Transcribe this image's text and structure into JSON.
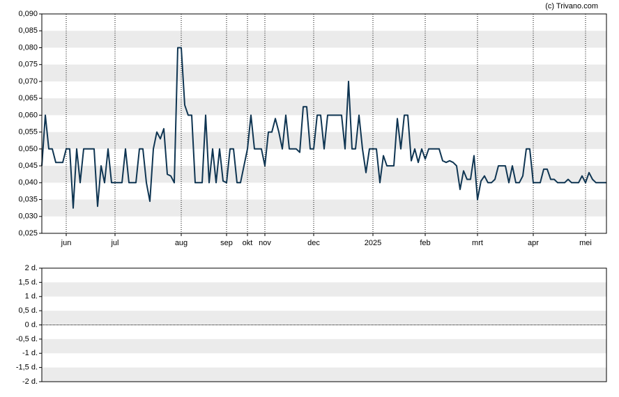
{
  "credit": "(c) Trivano.com",
  "chart_data": [
    {
      "type": "line",
      "categories": [
        null,
        null,
        null,
        null,
        null,
        null,
        null,
        "jun",
        null,
        null,
        null,
        null,
        null,
        null,
        null,
        null,
        null,
        null,
        null,
        null,
        null,
        "jul",
        null,
        null,
        null,
        null,
        null,
        null,
        null,
        null,
        null,
        null,
        null,
        null,
        null,
        null,
        null,
        null,
        null,
        null,
        "aug",
        null,
        null,
        null,
        null,
        null,
        null,
        null,
        null,
        null,
        null,
        null,
        null,
        "sep",
        null,
        null,
        null,
        null,
        null,
        "okt",
        null,
        null,
        null,
        null,
        "nov",
        null,
        null,
        null,
        null,
        null,
        null,
        null,
        null,
        null,
        null,
        null,
        null,
        null,
        "dec",
        null,
        null,
        null,
        null,
        null,
        null,
        null,
        null,
        null,
        null,
        null,
        null,
        null,
        null,
        null,
        null,
        "2025",
        null,
        null,
        null,
        null,
        null,
        null,
        null,
        null,
        null,
        null,
        null,
        null,
        null,
        null,
        "feb",
        null,
        null,
        null,
        null,
        null,
        null,
        null,
        null,
        null,
        null,
        null,
        null,
        null,
        null,
        "mrt",
        null,
        null,
        null,
        null,
        null,
        null,
        null,
        null,
        null,
        null,
        null,
        null,
        null,
        null,
        null,
        "apr",
        null,
        null,
        null,
        null,
        null,
        null,
        null,
        null,
        null,
        null,
        null,
        null,
        null,
        null,
        "mei",
        null,
        null,
        null,
        null,
        null,
        null
      ],
      "series": [
        {
          "color": "#0f3552",
          "values": [
            0.045,
            0.06,
            0.05,
            0.05,
            0.046,
            0.046,
            0.046,
            0.05,
            0.05,
            0.0325,
            0.05,
            0.04,
            0.05,
            0.05,
            0.05,
            0.05,
            0.033,
            0.045,
            0.04,
            0.05,
            0.04,
            0.04,
            0.04,
            0.04,
            0.05,
            0.04,
            0.04,
            0.04,
            0.05,
            0.05,
            0.04,
            0.0345,
            0.05,
            0.055,
            0.053,
            0.056,
            0.0425,
            0.042,
            0.04,
            0.08,
            0.08,
            0.063,
            0.06,
            0.06,
            0.04,
            0.04,
            0.04,
            0.06,
            0.04,
            0.05,
            0.04,
            0.05,
            0.0405,
            0.04,
            0.05,
            0.05,
            0.04,
            0.04,
            0.045,
            0.05,
            0.06,
            0.05,
            0.05,
            0.05,
            0.045,
            0.055,
            0.055,
            0.059,
            0.055,
            0.05,
            0.06,
            0.05,
            0.05,
            0.05,
            0.049,
            0.0625,
            0.0625,
            0.05,
            0.05,
            0.06,
            0.06,
            0.05,
            0.06,
            0.06,
            0.06,
            0.06,
            0.06,
            0.05,
            0.07,
            0.05,
            0.05,
            0.06,
            0.05,
            0.043,
            0.05,
            0.05,
            0.05,
            0.04,
            0.048,
            0.045,
            0.045,
            0.045,
            0.059,
            0.05,
            0.06,
            0.06,
            0.0465,
            0.05,
            0.046,
            0.05,
            0.047,
            0.05,
            0.05,
            0.05,
            0.05,
            0.0465,
            0.046,
            0.0465,
            0.046,
            0.045,
            0.038,
            0.0435,
            0.041,
            0.041,
            0.048,
            0.035,
            0.0405,
            0.042,
            0.04,
            0.04,
            0.041,
            0.045,
            0.045,
            0.045,
            0.04,
            0.045,
            0.04,
            0.04,
            0.042,
            0.05,
            0.05,
            0.04,
            0.04,
            0.04,
            0.044,
            0.044,
            0.041,
            0.041,
            0.04,
            0.04,
            0.04,
            0.041,
            0.04,
            0.04,
            0.04,
            0.042,
            0.04,
            0.043,
            0.041,
            0.04,
            0.04,
            0.04,
            0.04
          ]
        }
      ],
      "ylim": [
        0.025,
        0.09
      ],
      "yticks": [
        {
          "value": 0.025,
          "label": "0,025"
        },
        {
          "value": 0.03,
          "label": "0,030"
        },
        {
          "value": 0.035,
          "label": "0,035"
        },
        {
          "value": 0.04,
          "label": "0,040"
        },
        {
          "value": 0.045,
          "label": "0,045"
        },
        {
          "value": 0.05,
          "label": "0,050"
        },
        {
          "value": 0.055,
          "label": "0,055"
        },
        {
          "value": 0.06,
          "label": "0,060"
        },
        {
          "value": 0.065,
          "label": "0,065"
        },
        {
          "value": 0.07,
          "label": "0,070"
        },
        {
          "value": 0.075,
          "label": "0,075"
        },
        {
          "value": 0.08,
          "label": "0,080"
        },
        {
          "value": 0.085,
          "label": "0,085"
        },
        {
          "value": 0.09,
          "label": "0,090"
        }
      ]
    },
    {
      "type": "line",
      "ylim": [
        -2,
        2
      ],
      "yticks": [
        {
          "value": -2,
          "label": "-2 d."
        },
        {
          "value": -1.5,
          "label": "-1,5 d."
        },
        {
          "value": -1,
          "label": "-1 d."
        },
        {
          "value": -0.5,
          "label": "-0,5 d."
        },
        {
          "value": 0,
          "label": "0 d."
        },
        {
          "value": 0.5,
          "label": "0,5 d."
        },
        {
          "value": 1,
          "label": "1 d."
        },
        {
          "value": 1.5,
          "label": "1,5 d."
        },
        {
          "value": 2,
          "label": "2 d."
        }
      ]
    }
  ]
}
